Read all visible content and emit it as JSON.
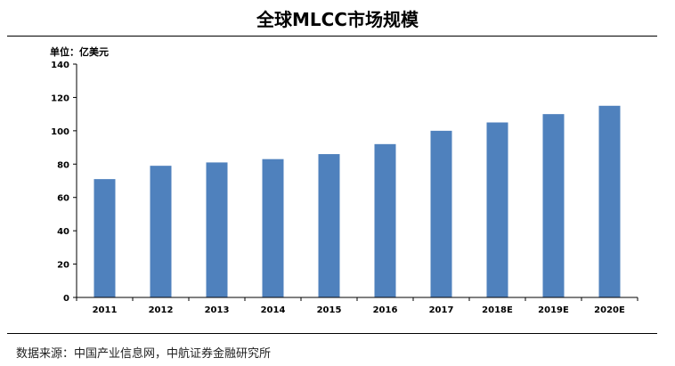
{
  "header": {
    "title": "全球MLCC市场规模",
    "unit_label": "单位：亿美元"
  },
  "footer": {
    "source": "数据来源：中国产业信息网，中航证券金融研究所"
  },
  "colors": {
    "bar": "#4F81BD",
    "axis": "#000000"
  },
  "chart_data": {
    "type": "bar",
    "title": "全球MLCC市场规模",
    "xlabel": "",
    "ylabel": "单位：亿美元",
    "categories": [
      "2011",
      "2012",
      "2013",
      "2014",
      "2015",
      "2016",
      "2017",
      "2018E",
      "2019E",
      "2020E"
    ],
    "values": [
      71,
      79,
      81,
      83,
      86,
      92,
      100,
      105,
      110,
      115
    ],
    "ylim": [
      0,
      140
    ],
    "yticks": [
      0,
      20,
      40,
      60,
      80,
      100,
      120,
      140
    ],
    "grid": false,
    "legend": "none"
  }
}
